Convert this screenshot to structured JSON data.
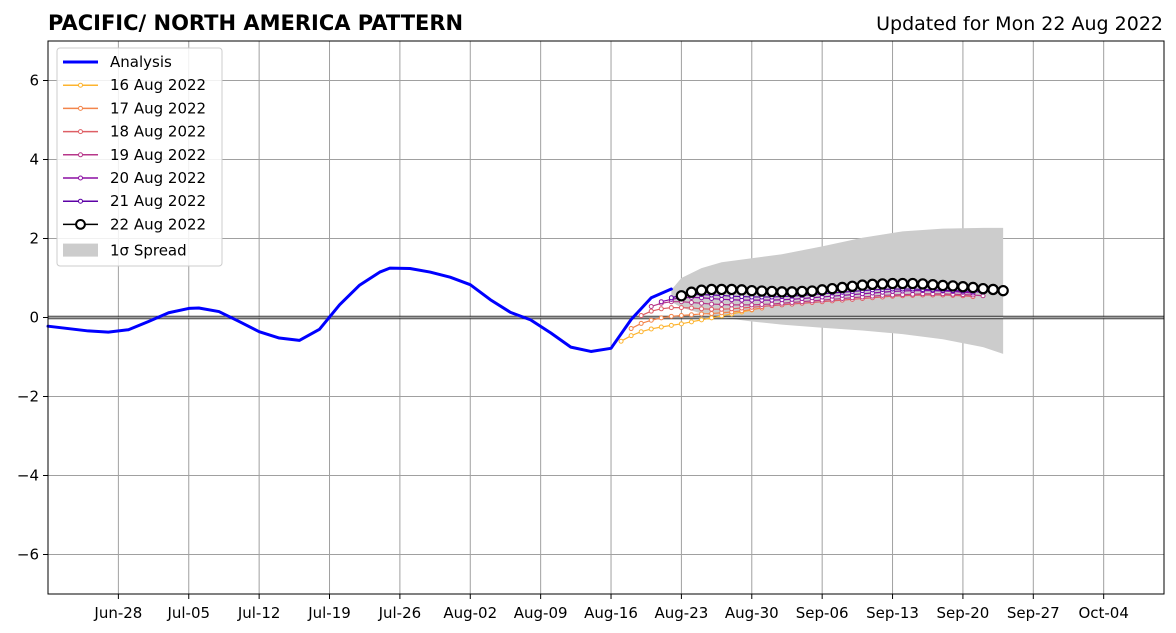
{
  "header": {
    "title": "PACIFIC/ NORTH AMERICA PATTERN",
    "updated": "Updated for Mon 22 Aug 2022"
  },
  "chart_data": {
    "type": "line",
    "title": "PACIFIC/ NORTH AMERICA PATTERN",
    "subtitle": "Updated for Mon 22 Aug 2022",
    "xlabel": "",
    "ylabel": "",
    "xlim": [
      "2022-06-21",
      "2022-10-10"
    ],
    "ylim": [
      -7,
      7
    ],
    "grid": true,
    "legend_position": "top-left",
    "x_ticks": [
      "Jun-28",
      "Jul-05",
      "Jul-12",
      "Jul-19",
      "Jul-26",
      "Aug-02",
      "Aug-09",
      "Aug-16",
      "Aug-23",
      "Aug-30",
      "Sep-06",
      "Sep-13",
      "Sep-20",
      "Sep-27",
      "Oct-04"
    ],
    "x_tick_dates": [
      "2022-06-28",
      "2022-07-05",
      "2022-07-12",
      "2022-07-19",
      "2022-07-26",
      "2022-08-02",
      "2022-08-09",
      "2022-08-16",
      "2022-08-23",
      "2022-08-30",
      "2022-09-06",
      "2022-09-13",
      "2022-09-20",
      "2022-09-27",
      "2022-10-04"
    ],
    "y_ticks": [
      -6,
      -4,
      -2,
      0,
      2,
      4,
      6
    ],
    "y_tick_labels": [
      "−6",
      "−4",
      "−2",
      "0",
      "2",
      "4",
      "6"
    ],
    "series": [
      {
        "name": "Analysis",
        "color": "#0000ff",
        "style": "line",
        "x": [
          "2022-06-21",
          "2022-06-23",
          "2022-06-25",
          "2022-06-27",
          "2022-06-29",
          "2022-07-01",
          "2022-07-03",
          "2022-07-05",
          "2022-07-06",
          "2022-07-08",
          "2022-07-10",
          "2022-07-12",
          "2022-07-14",
          "2022-07-16",
          "2022-07-18",
          "2022-07-20",
          "2022-07-22",
          "2022-07-24",
          "2022-07-25",
          "2022-07-27",
          "2022-07-29",
          "2022-07-31",
          "2022-08-02",
          "2022-08-04",
          "2022-08-06",
          "2022-08-08",
          "2022-08-10",
          "2022-08-12",
          "2022-08-14",
          "2022-08-16",
          "2022-08-18",
          "2022-08-20",
          "2022-08-22"
        ],
        "y": [
          -0.22,
          -0.28,
          -0.34,
          -0.37,
          -0.31,
          -0.1,
          0.12,
          0.23,
          0.24,
          0.15,
          -0.1,
          -0.36,
          -0.52,
          -0.58,
          -0.3,
          0.32,
          0.82,
          1.15,
          1.25,
          1.24,
          1.15,
          1.02,
          0.83,
          0.45,
          0.13,
          -0.06,
          -0.39,
          -0.75,
          -0.86,
          -0.78,
          -0.05,
          0.5,
          0.72
        ]
      },
      {
        "name": "16 Aug 2022",
        "color": "#fdb42f",
        "style": "line-dots",
        "x": [
          "2022-08-17",
          "2022-08-18",
          "2022-08-19",
          "2022-08-20",
          "2022-08-21",
          "2022-08-22",
          "2022-08-23",
          "2022-08-24",
          "2022-08-25",
          "2022-08-26",
          "2022-08-27",
          "2022-08-28",
          "2022-08-29",
          "2022-08-30"
        ],
        "y": [
          -0.6,
          -0.46,
          -0.36,
          -0.29,
          -0.24,
          -0.2,
          -0.16,
          -0.11,
          -0.06,
          -0.01,
          0.04,
          0.09,
          0.14,
          0.19
        ]
      },
      {
        "name": "17 Aug 2022",
        "color": "#f3854b",
        "style": "line-dots",
        "x": [
          "2022-08-18",
          "2022-08-19",
          "2022-08-20",
          "2022-08-21",
          "2022-08-22",
          "2022-08-23",
          "2022-08-24",
          "2022-08-25",
          "2022-08-26",
          "2022-08-27",
          "2022-08-28",
          "2022-08-29",
          "2022-08-30",
          "2022-08-31"
        ],
        "y": [
          -0.28,
          -0.15,
          -0.07,
          -0.01,
          0.03,
          0.05,
          0.07,
          0.09,
          0.1,
          0.12,
          0.14,
          0.17,
          0.2,
          0.24
        ]
      },
      {
        "name": "18 Aug 2022",
        "color": "#de5f65",
        "style": "line-dots",
        "x": [
          "2022-08-19",
          "2022-08-20",
          "2022-08-21",
          "2022-08-22",
          "2022-08-23",
          "2022-08-24",
          "2022-08-25",
          "2022-08-26",
          "2022-08-27",
          "2022-08-28",
          "2022-08-29",
          "2022-08-30",
          "2022-08-31",
          "2022-09-01",
          "2022-09-02",
          "2022-09-03",
          "2022-09-04",
          "2022-09-05",
          "2022-09-06",
          "2022-09-07",
          "2022-09-08",
          "2022-09-09",
          "2022-09-10",
          "2022-09-11",
          "2022-09-12",
          "2022-09-13",
          "2022-09-14",
          "2022-09-15",
          "2022-09-16",
          "2022-09-17",
          "2022-09-18",
          "2022-09-19",
          "2022-09-20",
          "2022-09-21"
        ],
        "y": [
          0.05,
          0.16,
          0.22,
          0.25,
          0.25,
          0.24,
          0.22,
          0.21,
          0.21,
          0.22,
          0.24,
          0.26,
          0.28,
          0.3,
          0.32,
          0.34,
          0.36,
          0.38,
          0.4,
          0.42,
          0.44,
          0.46,
          0.48,
          0.5,
          0.52,
          0.54,
          0.55,
          0.56,
          0.57,
          0.57,
          0.57,
          0.56,
          0.55,
          0.53
        ]
      },
      {
        "name": "19 Aug 2022",
        "color": "#b7378a",
        "style": "line-dots",
        "x": [
          "2022-08-20",
          "2022-08-21",
          "2022-08-22",
          "2022-08-23",
          "2022-08-24",
          "2022-08-25",
          "2022-08-26",
          "2022-08-27",
          "2022-08-28",
          "2022-08-29",
          "2022-08-30",
          "2022-08-31",
          "2022-09-01",
          "2022-09-02",
          "2022-09-03",
          "2022-09-04",
          "2022-09-05",
          "2022-09-06",
          "2022-09-07",
          "2022-09-08",
          "2022-09-09",
          "2022-09-10",
          "2022-09-11",
          "2022-09-12",
          "2022-09-13",
          "2022-09-14",
          "2022-09-15",
          "2022-09-16",
          "2022-09-17",
          "2022-09-18",
          "2022-09-19",
          "2022-09-20",
          "2022-09-21",
          "2022-09-22"
        ],
        "y": [
          0.28,
          0.36,
          0.4,
          0.4,
          0.38,
          0.36,
          0.34,
          0.33,
          0.32,
          0.32,
          0.32,
          0.33,
          0.34,
          0.36,
          0.38,
          0.4,
          0.42,
          0.44,
          0.46,
          0.48,
          0.5,
          0.52,
          0.54,
          0.56,
          0.57,
          0.58,
          0.59,
          0.6,
          0.6,
          0.6,
          0.59,
          0.58,
          0.57,
          0.55
        ]
      },
      {
        "name": "20 Aug 2022",
        "color": "#8c0fa3",
        "style": "line-dots",
        "x": [
          "2022-08-21",
          "2022-08-22",
          "2022-08-23",
          "2022-08-24",
          "2022-08-25",
          "2022-08-26",
          "2022-08-27",
          "2022-08-28",
          "2022-08-29",
          "2022-08-30",
          "2022-08-31",
          "2022-09-01",
          "2022-09-02",
          "2022-09-03",
          "2022-09-04",
          "2022-09-05",
          "2022-09-06",
          "2022-09-07",
          "2022-09-08",
          "2022-09-09",
          "2022-09-10",
          "2022-09-11",
          "2022-09-12",
          "2022-09-13",
          "2022-09-14",
          "2022-09-15",
          "2022-09-16",
          "2022-09-17",
          "2022-09-18",
          "2022-09-19",
          "2022-09-20",
          "2022-09-21"
        ],
        "y": [
          0.4,
          0.46,
          0.5,
          0.51,
          0.5,
          0.48,
          0.46,
          0.45,
          0.44,
          0.44,
          0.44,
          0.44,
          0.45,
          0.46,
          0.48,
          0.5,
          0.52,
          0.54,
          0.56,
          0.58,
          0.6,
          0.62,
          0.64,
          0.66,
          0.67,
          0.68,
          0.68,
          0.68,
          0.67,
          0.66,
          0.64,
          0.62
        ]
      },
      {
        "name": "21 Aug 2022",
        "color": "#5c01a6",
        "style": "line-dots",
        "x": [
          "2022-08-22",
          "2022-08-23",
          "2022-08-24",
          "2022-08-25",
          "2022-08-26",
          "2022-08-27",
          "2022-08-28",
          "2022-08-29",
          "2022-08-30",
          "2022-08-31",
          "2022-09-01",
          "2022-09-02",
          "2022-09-03",
          "2022-09-04",
          "2022-09-05",
          "2022-09-06",
          "2022-09-07",
          "2022-09-08",
          "2022-09-09",
          "2022-09-10",
          "2022-09-11",
          "2022-09-12",
          "2022-09-13",
          "2022-09-14",
          "2022-09-15",
          "2022-09-16",
          "2022-09-17",
          "2022-09-18",
          "2022-09-19",
          "2022-09-20",
          "2022-09-21",
          "2022-09-22"
        ],
        "y": [
          0.5,
          0.56,
          0.58,
          0.58,
          0.57,
          0.56,
          0.54,
          0.53,
          0.52,
          0.52,
          0.52,
          0.53,
          0.54,
          0.56,
          0.58,
          0.6,
          0.62,
          0.64,
          0.66,
          0.68,
          0.7,
          0.71,
          0.72,
          0.72,
          0.72,
          0.71,
          0.7,
          0.69,
          0.68,
          0.67,
          0.66,
          0.64
        ]
      },
      {
        "name": "22 Aug 2022",
        "color": "#000000",
        "style": "line-open-circles",
        "x": [
          "2022-08-23",
          "2022-08-24",
          "2022-08-25",
          "2022-08-26",
          "2022-08-27",
          "2022-08-28",
          "2022-08-29",
          "2022-08-30",
          "2022-08-31",
          "2022-09-01",
          "2022-09-02",
          "2022-09-03",
          "2022-09-04",
          "2022-09-05",
          "2022-09-06",
          "2022-09-07",
          "2022-09-08",
          "2022-09-09",
          "2022-09-10",
          "2022-09-11",
          "2022-09-12",
          "2022-09-13",
          "2022-09-14",
          "2022-09-15",
          "2022-09-16",
          "2022-09-17",
          "2022-09-18",
          "2022-09-19",
          "2022-09-20",
          "2022-09-21",
          "2022-09-22",
          "2022-09-23",
          "2022-09-24"
        ],
        "y": [
          0.55,
          0.64,
          0.69,
          0.71,
          0.71,
          0.71,
          0.7,
          0.68,
          0.67,
          0.66,
          0.65,
          0.65,
          0.66,
          0.67,
          0.7,
          0.73,
          0.76,
          0.79,
          0.82,
          0.84,
          0.85,
          0.86,
          0.86,
          0.86,
          0.85,
          0.83,
          0.81,
          0.8,
          0.78,
          0.76,
          0.73,
          0.71,
          0.68
        ]
      }
    ],
    "spread": {
      "name": "1σ Spread",
      "color": "#cccccc",
      "x": [
        "2022-08-22",
        "2022-08-23",
        "2022-08-25",
        "2022-08-27",
        "2022-08-30",
        "2022-09-02",
        "2022-09-06",
        "2022-09-10",
        "2022-09-14",
        "2022-09-18",
        "2022-09-22",
        "2022-09-24"
      ],
      "upper": [
        0.7,
        1.0,
        1.25,
        1.4,
        1.5,
        1.6,
        1.8,
        2.02,
        2.18,
        2.25,
        2.27,
        2.27
      ],
      "lower": [
        0.4,
        0.25,
        0.1,
        0.0,
        -0.1,
        -0.18,
        -0.26,
        -0.33,
        -0.42,
        -0.55,
        -0.75,
        -0.92
      ]
    }
  }
}
